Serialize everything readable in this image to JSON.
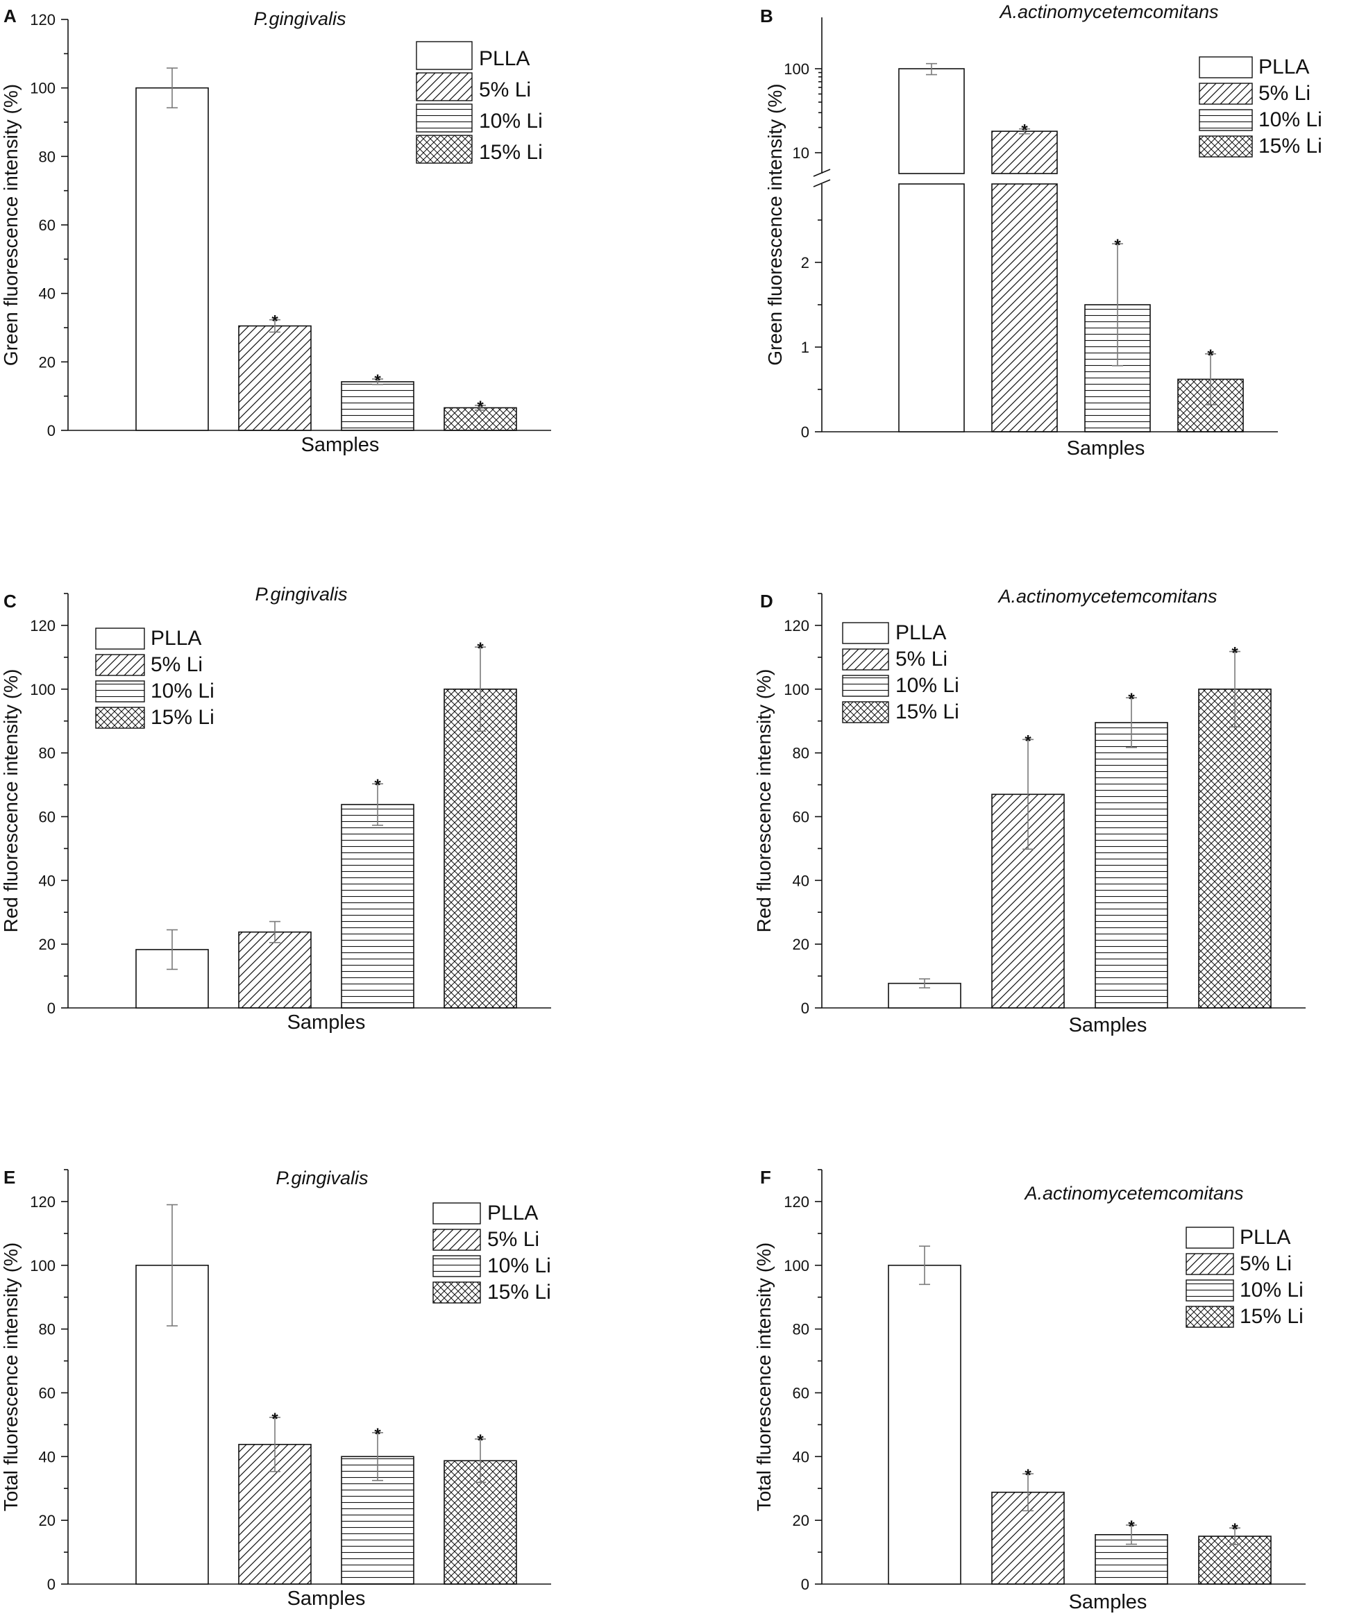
{
  "figure": {
    "panels": [
      "A",
      "B",
      "C",
      "D",
      "E",
      "F"
    ]
  },
  "colors": {
    "ink": "#111111",
    "error_bar": "#7a7a7a",
    "background": "#ffffff"
  },
  "chart_data": [
    {
      "panel": "A",
      "type": "bar",
      "title": "P.gingivalis",
      "xlabel": "Samples",
      "ylabel": "Green fluorescence intensity (%)",
      "ylim": [
        0,
        120
      ],
      "yticks": [
        0,
        20,
        40,
        60,
        80,
        100,
        120
      ],
      "categories": [
        "PLLA",
        "5% Li",
        "10% Li",
        "15% Li"
      ],
      "values": [
        100,
        30.5,
        14.2,
        6.6
      ],
      "errors": [
        5.8,
        1.8,
        0.8,
        0.7
      ],
      "significance": [
        "",
        "*",
        "*",
        "*"
      ],
      "legend": [
        "PLLA",
        "5% Li",
        "10% Li",
        "15% Li"
      ],
      "legend_position": "top-right"
    },
    {
      "panel": "B",
      "type": "bar",
      "title": "A.actinomycetemcomitans",
      "xlabel": "Samples",
      "ylabel": "Green fluorescence intensity (%)",
      "yscale": "broken: linear 0-3 below break, log 3-100+ above",
      "yticks": [
        0,
        1,
        2,
        10,
        100
      ],
      "categories": [
        "PLLA",
        "5% Li",
        "10% Li",
        "15% Li"
      ],
      "values": [
        100,
        18,
        1.5,
        0.62
      ],
      "errors": [
        15,
        1.2,
        0.72,
        0.3
      ],
      "significance": [
        "",
        "*",
        "*",
        "*"
      ],
      "legend": [
        "PLLA",
        "5% Li",
        "10% Li",
        "15% Li"
      ],
      "legend_position": "top-right"
    },
    {
      "panel": "C",
      "type": "bar",
      "title": "P.gingivalis",
      "xlabel": "Samples",
      "ylabel": "Red fluorescence intensity (%)",
      "ylim": [
        0,
        130
      ],
      "yticks": [
        0,
        20,
        40,
        60,
        80,
        100,
        120
      ],
      "categories": [
        "PLLA",
        "5% Li",
        "10% Li",
        "15% Li"
      ],
      "values": [
        18.3,
        23.8,
        63.8,
        100
      ],
      "errors": [
        6.2,
        3.3,
        6.5,
        13.2
      ],
      "significance": [
        "",
        "",
        "*",
        "*"
      ],
      "legend": [
        "PLLA",
        "5% Li",
        "10% Li",
        "15% Li"
      ],
      "legend_position": "top-left"
    },
    {
      "panel": "D",
      "type": "bar",
      "title": "A.actinomycetemcomitans",
      "xlabel": "Samples",
      "ylabel": "Red fluorescence intensity (%)",
      "ylim": [
        0,
        130
      ],
      "yticks": [
        0,
        20,
        40,
        60,
        80,
        100,
        120
      ],
      "categories": [
        "PLLA",
        "5% Li",
        "10% Li",
        "15% Li"
      ],
      "values": [
        7.7,
        67,
        89.5,
        100
      ],
      "errors": [
        1.4,
        17.2,
        7.8,
        11.8
      ],
      "significance": [
        "",
        "*",
        "*",
        "*"
      ],
      "legend": [
        "PLLA",
        "5% Li",
        "10% Li",
        "15% Li"
      ],
      "legend_position": "top-left"
    },
    {
      "panel": "E",
      "type": "bar",
      "title": "P.gingivalis",
      "xlabel": "Samples",
      "ylabel": "Total fluorescence intensity (%)",
      "ylim": [
        0,
        130
      ],
      "yticks": [
        0,
        20,
        40,
        60,
        80,
        100,
        120
      ],
      "categories": [
        "PLLA",
        "5% Li",
        "10% Li",
        "15% Li"
      ],
      "values": [
        100,
        43.8,
        40,
        38.7
      ],
      "errors": [
        19,
        8.5,
        7.5,
        6.8
      ],
      "significance": [
        "",
        "*",
        "*",
        "*"
      ],
      "legend": [
        "PLLA",
        "5% Li",
        "10% Li",
        "15% Li"
      ],
      "legend_position": "top-right"
    },
    {
      "panel": "F",
      "type": "bar",
      "title": "A.actinomycetemcomitans",
      "xlabel": "Samples",
      "ylabel": "Total fluorescence intensity (%)",
      "ylim": [
        0,
        130
      ],
      "yticks": [
        0,
        20,
        40,
        60,
        80,
        100,
        120
      ],
      "categories": [
        "PLLA",
        "5% Li",
        "10% Li",
        "15% Li"
      ],
      "values": [
        100,
        28.8,
        15.5,
        15
      ],
      "errors": [
        6,
        5.8,
        3,
        2.6
      ],
      "significance": [
        "",
        "*",
        "*",
        "*"
      ],
      "legend": [
        "PLLA",
        "5% Li",
        "10% Li",
        "15% Li"
      ],
      "legend_position": "top-right"
    }
  ]
}
